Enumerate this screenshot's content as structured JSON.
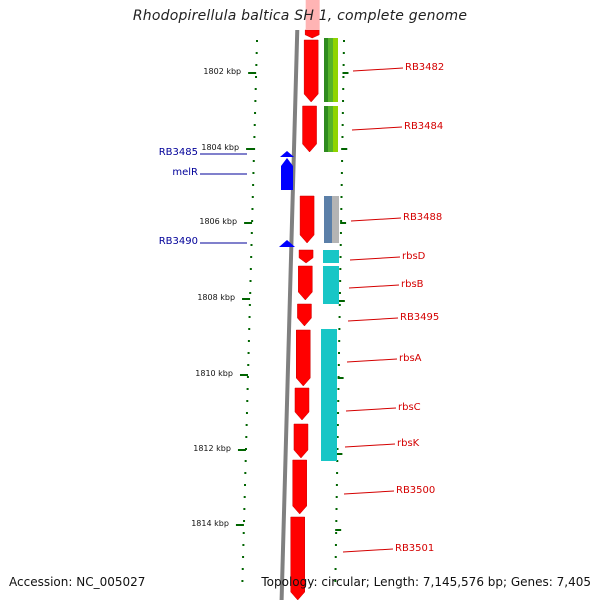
{
  "title": "Rhodopirellula baltica SH 1, complete genome",
  "footer": {
    "accession": "Accession: NC_005027",
    "topology": "Topology: circular; Length: 7,145,576 bp; Genes: 7,405"
  },
  "scale": {
    "unit": "kbp",
    "labels": [
      "1802 kbp",
      "1804 kbp",
      "1806 kbp",
      "1808 kbp",
      "1810 kbp",
      "1812 kbp",
      "1814 kbp"
    ]
  },
  "colors": {
    "forward_genes": "#ff0000",
    "reverse_genes": "#0000ff",
    "backbone": "#808080",
    "scale_ticks": "#006400",
    "label_red": "#d40000",
    "label_blue": "#000099",
    "cog_green_dark": "#2e8b1e",
    "cog_green_light": "#8fd400",
    "cog_steel": "#5b7fa8",
    "cog_gray": "#b4b4b4",
    "cog_cyan": "#18c6c6"
  },
  "genes": {
    "forward_strand": [
      {
        "name": "RB3482"
      },
      {
        "name": "RB3484"
      },
      {
        "name": "RB3488"
      },
      {
        "name": "rbsD"
      },
      {
        "name": "rbsB"
      },
      {
        "name": "RB3495"
      },
      {
        "name": "rbsA"
      },
      {
        "name": "rbsC"
      },
      {
        "name": "rbsK"
      },
      {
        "name": "RB3500"
      },
      {
        "name": "RB3501"
      }
    ],
    "reverse_strand": [
      {
        "name": "RB3485"
      },
      {
        "name": "melR"
      },
      {
        "name": "RB3490"
      }
    ]
  }
}
